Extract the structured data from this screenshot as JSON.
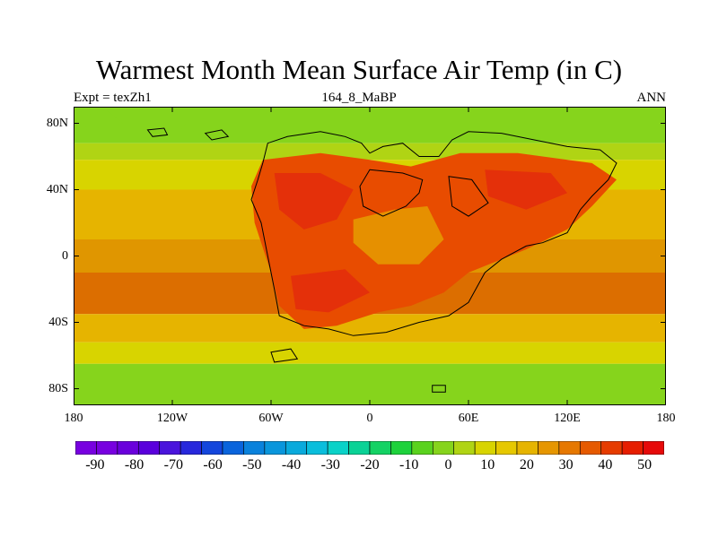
{
  "title": "Warmest Month Mean Surface Air Temp (in C)",
  "expt_label": "Expt = texZh1",
  "subtitle": "164_8_MaBP",
  "season": "ANN",
  "map": {
    "projection": "cylindrical-equidistant",
    "lon_range": [
      -180,
      180
    ],
    "lat_range": [
      -90,
      90
    ],
    "lat_ticks": [
      {
        "value": 80,
        "label": "80N"
      },
      {
        "value": 40,
        "label": "40N"
      },
      {
        "value": 0,
        "label": "0"
      },
      {
        "value": -40,
        "label": "40S"
      },
      {
        "value": -80,
        "label": "80S"
      }
    ],
    "lon_ticks": [
      {
        "value": -180,
        "label": "180"
      },
      {
        "value": -120,
        "label": "120W"
      },
      {
        "value": -60,
        "label": "60W"
      },
      {
        "value": 0,
        "label": "0"
      },
      {
        "value": 60,
        "label": "60E"
      },
      {
        "value": 120,
        "label": "120E"
      },
      {
        "value": 180,
        "label": "180"
      }
    ],
    "ocean_lat_bands": [
      {
        "lat": [
          68,
          90
        ],
        "color": "#86d41c"
      },
      {
        "lat": [
          58,
          68
        ],
        "color": "#b0d414"
      },
      {
        "lat": [
          40,
          58
        ],
        "color": "#d8d400"
      },
      {
        "lat": [
          10,
          40
        ],
        "color": "#e6b400"
      },
      {
        "lat": [
          -10,
          10
        ],
        "color": "#e09600"
      },
      {
        "lat": [
          -35,
          -10
        ],
        "color": "#dc6e00"
      },
      {
        "lat": [
          -52,
          -35
        ],
        "color": "#e6b400"
      },
      {
        "lat": [
          -65,
          -52
        ],
        "color": "#d8d400"
      },
      {
        "lat": [
          -90,
          -65
        ],
        "color": "#86d41c"
      }
    ],
    "warm_regions": [
      {
        "name": "pangaea-core",
        "color": "#e84c00",
        "points": [
          [
            -65,
            58
          ],
          [
            -30,
            62
          ],
          [
            0,
            58
          ],
          [
            25,
            54
          ],
          [
            55,
            62
          ],
          [
            90,
            62
          ],
          [
            135,
            56
          ],
          [
            150,
            46
          ],
          [
            135,
            30
          ],
          [
            120,
            16
          ],
          [
            95,
            4
          ],
          [
            60,
            -10
          ],
          [
            45,
            -22
          ],
          [
            25,
            -30
          ],
          [
            5,
            -34
          ],
          [
            -20,
            -42
          ],
          [
            -40,
            -44
          ],
          [
            -55,
            -30
          ],
          [
            -60,
            -10
          ],
          [
            -70,
            20
          ],
          [
            -72,
            42
          ]
        ]
      },
      {
        "name": "hot-spot-west",
        "color": "#e4300a",
        "points": [
          [
            -58,
            50
          ],
          [
            -30,
            50
          ],
          [
            -10,
            40
          ],
          [
            -20,
            22
          ],
          [
            -40,
            16
          ],
          [
            -55,
            28
          ]
        ]
      },
      {
        "name": "hot-spot-south",
        "color": "#e4300a",
        "points": [
          [
            -48,
            -12
          ],
          [
            -15,
            -8
          ],
          [
            0,
            -22
          ],
          [
            -25,
            -34
          ],
          [
            -45,
            -32
          ]
        ]
      },
      {
        "name": "hot-spot-east",
        "color": "#e4300a",
        "points": [
          [
            70,
            52
          ],
          [
            110,
            50
          ],
          [
            120,
            38
          ],
          [
            95,
            28
          ],
          [
            72,
            36
          ]
        ]
      },
      {
        "name": "cooler-basin",
        "color": "#e69000",
        "points": [
          [
            -10,
            22
          ],
          [
            15,
            28
          ],
          [
            35,
            30
          ],
          [
            45,
            10
          ],
          [
            30,
            -5
          ],
          [
            5,
            -5
          ],
          [
            -10,
            8
          ]
        ]
      }
    ],
    "cold_regions": [
      {
        "name": "arctic-cool-1",
        "color": "#86d41c",
        "points": [
          [
            -110,
            82
          ],
          [
            -60,
            86
          ],
          [
            -20,
            84
          ],
          [
            -20,
            74
          ],
          [
            -80,
            72
          ],
          [
            -115,
            76
          ]
        ]
      },
      {
        "name": "arctic-cool-2",
        "color": "#86d41c",
        "points": [
          [
            -175,
            84
          ],
          [
            -160,
            88
          ],
          [
            -150,
            80
          ],
          [
            -172,
            76
          ]
        ]
      },
      {
        "name": "antarctic-cool",
        "color": "#86d41c",
        "points": [
          [
            -180,
            -68
          ],
          [
            180,
            -68
          ],
          [
            180,
            -90
          ],
          [
            -180,
            -90
          ]
        ]
      }
    ],
    "coastlines": [
      {
        "name": "main-continent",
        "points": [
          [
            -65,
            56
          ],
          [
            -62,
            68
          ],
          [
            -50,
            72
          ],
          [
            -30,
            75
          ],
          [
            -15,
            72
          ],
          [
            -5,
            68
          ],
          [
            0,
            62
          ],
          [
            8,
            66
          ],
          [
            20,
            68
          ],
          [
            30,
            60
          ],
          [
            42,
            60
          ],
          [
            50,
            70
          ],
          [
            60,
            75
          ],
          [
            80,
            74
          ],
          [
            100,
            70
          ],
          [
            120,
            66
          ],
          [
            140,
            64
          ],
          [
            150,
            56
          ],
          [
            145,
            46
          ],
          [
            135,
            36
          ],
          [
            128,
            28
          ],
          [
            120,
            14
          ],
          [
            105,
            8
          ],
          [
            95,
            6
          ],
          [
            80,
            -2
          ],
          [
            70,
            -10
          ],
          [
            60,
            -28
          ],
          [
            48,
            -36
          ],
          [
            30,
            -40
          ],
          [
            10,
            -46
          ],
          [
            -10,
            -48
          ],
          [
            -25,
            -44
          ],
          [
            -40,
            -42
          ],
          [
            -55,
            -36
          ],
          [
            -58,
            -20
          ],
          [
            -62,
            0
          ],
          [
            -66,
            20
          ],
          [
            -72,
            34
          ],
          [
            -68,
            46
          ]
        ]
      },
      {
        "name": "inner-sea",
        "points": [
          [
            0,
            52
          ],
          [
            20,
            50
          ],
          [
            32,
            46
          ],
          [
            30,
            38
          ],
          [
            22,
            30
          ],
          [
            8,
            24
          ],
          [
            -4,
            30
          ],
          [
            -6,
            42
          ]
        ]
      },
      {
        "name": "gulf",
        "points": [
          [
            48,
            48
          ],
          [
            62,
            46
          ],
          [
            72,
            32
          ],
          [
            60,
            24
          ],
          [
            50,
            30
          ]
        ]
      },
      {
        "name": "island-a",
        "points": [
          [
            -60,
            -58
          ],
          [
            -48,
            -56
          ],
          [
            -44,
            -62
          ],
          [
            -58,
            -64
          ]
        ]
      },
      {
        "name": "island-b",
        "points": [
          [
            -100,
            74
          ],
          [
            -90,
            76
          ],
          [
            -86,
            72
          ],
          [
            -96,
            70
          ]
        ]
      },
      {
        "name": "island-c",
        "points": [
          [
            -135,
            76
          ],
          [
            -125,
            77
          ],
          [
            -123,
            73
          ],
          [
            -132,
            72
          ]
        ]
      },
      {
        "name": "island-d",
        "points": [
          [
            38,
            -78
          ],
          [
            46,
            -78
          ],
          [
            46,
            -82
          ],
          [
            38,
            -82
          ]
        ]
      }
    ]
  },
  "colorbar": {
    "colors": [
      "#7800e0",
      "#7800e0",
      "#6a00dc",
      "#5a00dc",
      "#4a14dc",
      "#2828dc",
      "#1446dc",
      "#0a64dc",
      "#0a82dc",
      "#0a96dc",
      "#0aaadc",
      "#0abedc",
      "#0ad2c8",
      "#0ad296",
      "#14d264",
      "#1ed23c",
      "#5ad21e",
      "#86d41c",
      "#b0d414",
      "#d8d400",
      "#e6c800",
      "#e6b400",
      "#e69600",
      "#e67800",
      "#e65a00",
      "#e63c00",
      "#e61e00",
      "#e60a0a"
    ],
    "labels": [
      -90,
      -80,
      -70,
      -60,
      -50,
      -40,
      -30,
      -20,
      -10,
      0,
      10,
      20,
      30,
      40,
      50
    ],
    "range": [
      -95,
      55
    ]
  }
}
